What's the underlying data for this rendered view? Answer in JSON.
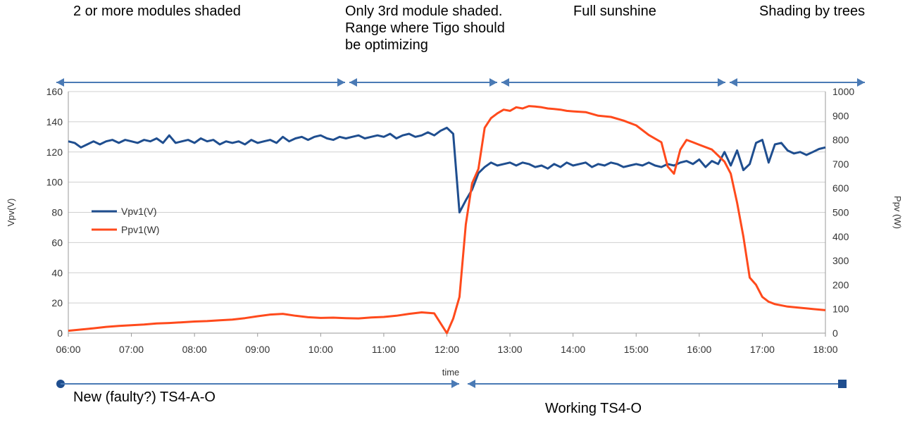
{
  "annotations": {
    "top": [
      "2 or more modules shaded",
      "Only 3rd module shaded.\nRange where Tigo should\nbe optimizing",
      "Full sunshine",
      "Shading by trees"
    ],
    "bottom": [
      "New (faulty?) TS4-A-O",
      "Working TS4-O"
    ]
  },
  "colors": {
    "vpv": "#1f4e8f",
    "ppv": "#ff4a1c",
    "arrow": "#4a7ab5",
    "grid": "#cfcfcf"
  },
  "chart_data": {
    "type": "line",
    "xlabel": "time",
    "ylabel_left": "Vpv(V)",
    "ylabel_right": "Ppv (W)",
    "x_ticks": [
      "06:00",
      "07:00",
      "08:00",
      "09:00",
      "10:00",
      "11:00",
      "12:00",
      "13:00",
      "14:00",
      "15:00",
      "16:00",
      "17:00",
      "18:00"
    ],
    "x_range_hours": [
      6,
      18
    ],
    "y_left_range": [
      0,
      160
    ],
    "y_left_ticks": [
      0,
      20,
      40,
      60,
      80,
      100,
      120,
      140,
      160
    ],
    "y_right_range": [
      0,
      1000
    ],
    "y_right_ticks": [
      0,
      100,
      200,
      300,
      400,
      500,
      600,
      700,
      800,
      900,
      1000
    ],
    "grid": true,
    "legend_position": "left-middle",
    "series": [
      {
        "name": "Vpv1(V)",
        "axis": "left",
        "x_hours": [
          6.0,
          6.1,
          6.2,
          6.3,
          6.4,
          6.5,
          6.6,
          6.7,
          6.8,
          6.9,
          7.0,
          7.1,
          7.2,
          7.3,
          7.4,
          7.5,
          7.6,
          7.7,
          7.8,
          7.9,
          8.0,
          8.1,
          8.2,
          8.3,
          8.4,
          8.5,
          8.6,
          8.7,
          8.8,
          8.9,
          9.0,
          9.1,
          9.2,
          9.3,
          9.4,
          9.5,
          9.6,
          9.7,
          9.8,
          9.9,
          10.0,
          10.1,
          10.2,
          10.3,
          10.4,
          10.5,
          10.6,
          10.7,
          10.8,
          10.9,
          11.0,
          11.1,
          11.2,
          11.3,
          11.4,
          11.5,
          11.6,
          11.7,
          11.8,
          11.9,
          12.0,
          12.1,
          12.2,
          12.3,
          12.4,
          12.5,
          12.6,
          12.7,
          12.8,
          12.9,
          13.0,
          13.1,
          13.2,
          13.3,
          13.4,
          13.5,
          13.6,
          13.7,
          13.8,
          13.9,
          14.0,
          14.1,
          14.2,
          14.3,
          14.4,
          14.5,
          14.6,
          14.7,
          14.8,
          14.9,
          15.0,
          15.1,
          15.2,
          15.3,
          15.4,
          15.5,
          15.6,
          15.7,
          15.8,
          15.9,
          16.0,
          16.1,
          16.2,
          16.3,
          16.4,
          16.5,
          16.6,
          16.7,
          16.8,
          16.9,
          17.0,
          17.1,
          17.2,
          17.3,
          17.4,
          17.5,
          17.6,
          17.7,
          17.8,
          17.9,
          18.0
        ],
        "values": [
          127,
          126,
          123,
          125,
          127,
          125,
          127,
          128,
          126,
          128,
          127,
          126,
          128,
          127,
          129,
          126,
          131,
          126,
          127,
          128,
          126,
          129,
          127,
          128,
          125,
          127,
          126,
          127,
          125,
          128,
          126,
          127,
          128,
          126,
          130,
          127,
          129,
          130,
          128,
          130,
          131,
          129,
          128,
          130,
          129,
          130,
          131,
          129,
          130,
          131,
          130,
          132,
          129,
          131,
          132,
          130,
          131,
          133,
          131,
          134,
          136,
          132,
          80,
          88,
          95,
          106,
          110,
          113,
          111,
          112,
          113,
          111,
          113,
          112,
          110,
          111,
          109,
          112,
          110,
          113,
          111,
          112,
          113,
          110,
          112,
          111,
          113,
          112,
          110,
          111,
          112,
          111,
          113,
          111,
          110,
          112,
          111,
          113,
          114,
          112,
          115,
          110,
          114,
          112,
          120,
          111,
          121,
          108,
          112,
          126,
          128,
          113,
          125,
          126,
          121,
          119,
          120,
          118,
          120,
          122,
          123
        ]
      },
      {
        "name": "Ppv1(W)",
        "axis": "right",
        "x_hours": [
          6.0,
          6.2,
          6.4,
          6.6,
          6.8,
          7.0,
          7.2,
          7.4,
          7.6,
          7.8,
          8.0,
          8.2,
          8.4,
          8.6,
          8.8,
          9.0,
          9.2,
          9.4,
          9.6,
          9.8,
          10.0,
          10.2,
          10.4,
          10.6,
          10.8,
          11.0,
          11.2,
          11.4,
          11.6,
          11.8,
          12.0,
          12.1,
          12.2,
          12.3,
          12.4,
          12.5,
          12.6,
          12.7,
          12.8,
          12.9,
          13.0,
          13.1,
          13.2,
          13.3,
          13.4,
          13.5,
          13.6,
          13.7,
          13.8,
          13.9,
          14.0,
          14.2,
          14.4,
          14.6,
          14.8,
          15.0,
          15.2,
          15.4,
          15.5,
          15.6,
          15.7,
          15.8,
          15.9,
          16.0,
          16.2,
          16.4,
          16.5,
          16.6,
          16.7,
          16.8,
          16.9,
          17.0,
          17.1,
          17.2,
          17.4,
          17.6,
          17.8,
          18.0
        ],
        "values": [
          10,
          15,
          20,
          26,
          30,
          33,
          36,
          40,
          42,
          45,
          48,
          50,
          53,
          56,
          62,
          70,
          77,
          80,
          72,
          66,
          63,
          64,
          62,
          61,
          65,
          67,
          72,
          80,
          86,
          82,
          0,
          60,
          150,
          450,
          620,
          680,
          850,
          890,
          910,
          925,
          920,
          935,
          930,
          940,
          938,
          935,
          930,
          928,
          925,
          920,
          918,
          915,
          900,
          895,
          880,
          860,
          820,
          790,
          690,
          660,
          760,
          800,
          790,
          780,
          760,
          710,
          660,
          540,
          400,
          230,
          200,
          150,
          130,
          120,
          110,
          105,
          100,
          95
        ]
      }
    ]
  }
}
